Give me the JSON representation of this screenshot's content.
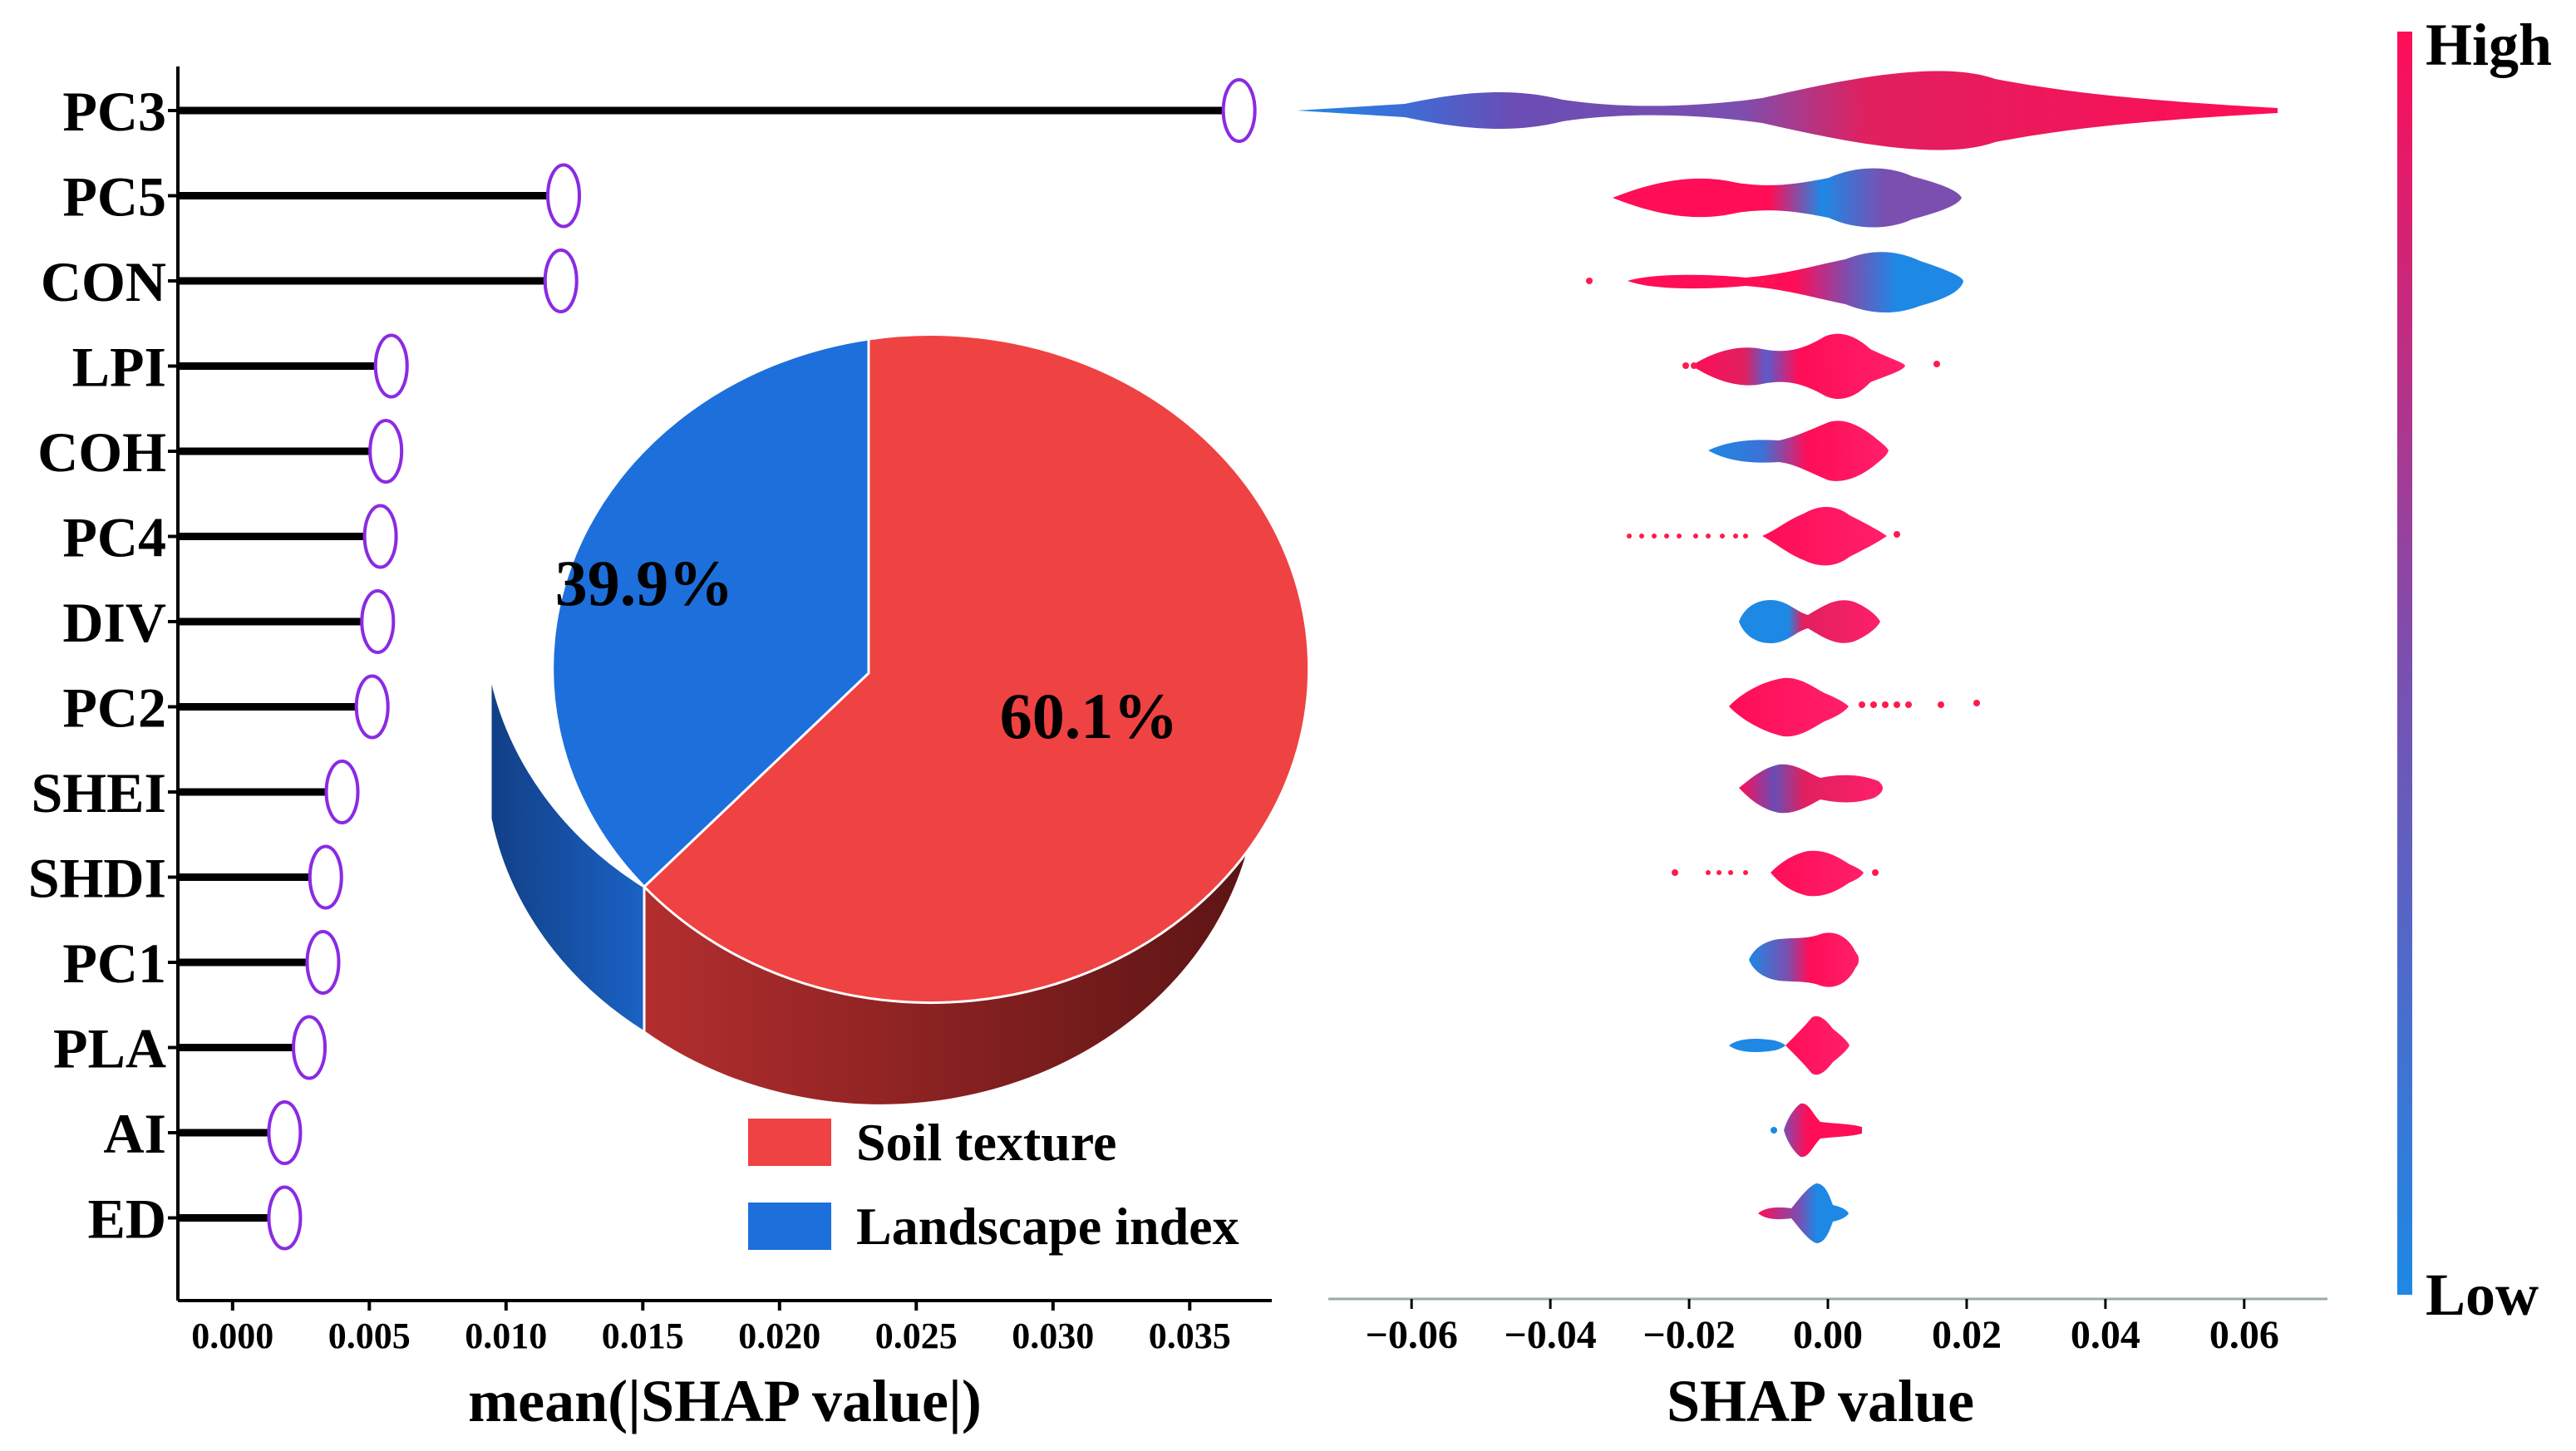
{
  "chart_data": [
    {
      "type": "lollipop",
      "title": "",
      "xlabel": "mean(|SHAP value|)",
      "ylabel": "",
      "xlim": [
        -0.002,
        0.038
      ],
      "xticks": [
        "0.000",
        "0.005",
        "0.010",
        "0.015",
        "0.020",
        "0.025",
        "0.030",
        "0.035"
      ],
      "xtick_values": [
        0,
        0.005,
        0.01,
        0.015,
        0.02,
        0.025,
        0.03,
        0.035
      ],
      "categories": [
        "PC3",
        "PC5",
        "CON",
        "LPI",
        "COH",
        "PC4",
        "DIV",
        "PC2",
        "SHEI",
        "SHDI",
        "PC1",
        "PLA",
        "AI",
        "ED"
      ],
      "values": [
        0.0365,
        0.0118,
        0.0117,
        0.0055,
        0.0053,
        0.0051,
        0.005,
        0.0048,
        0.0037,
        0.0031,
        0.003,
        0.0025,
        0.0016,
        0.0016
      ],
      "marker_color": "#8a2be2"
    },
    {
      "type": "pie",
      "labels": [
        "Soil texture",
        "Landscape index"
      ],
      "values": [
        60.1,
        39.9
      ],
      "value_labels": [
        "60.1%",
        "39.9%"
      ],
      "colors": [
        "#ef4242",
        "#1d6fdc"
      ],
      "legend": "bottom-right"
    },
    {
      "type": "violin",
      "xlabel": "SHAP value",
      "xlim": [
        -0.072,
        0.072
      ],
      "xticks": [
        "−0.06",
        "−0.04",
        "−0.02",
        "0.00",
        "0.02",
        "0.04",
        "0.06"
      ],
      "xtick_values": [
        -0.06,
        -0.04,
        -0.02,
        0,
        0.02,
        0.04,
        0.06
      ],
      "features": [
        "PC3",
        "PC5",
        "CON",
        "LPI",
        "COH",
        "PC4",
        "DIV",
        "PC2",
        "SHEI",
        "SHDI",
        "PC1",
        "PLA",
        "AI",
        "ED"
      ],
      "colorbar": {
        "high_label": "High",
        "low_label": "Low",
        "high_color": "#ff0d57",
        "mid_color": "#7b4fb0",
        "low_color": "#1e88e5"
      }
    }
  ]
}
